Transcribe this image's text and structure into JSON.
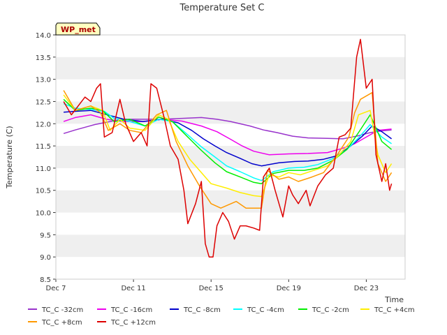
{
  "chart_data": {
    "type": "line",
    "title": "Temperature Set C",
    "xlabel": "Time",
    "ylabel": "Temperature (C)",
    "ylim": [
      8.5,
      14.0
    ],
    "xlim": [
      "Dec 7",
      "Dec 25"
    ],
    "yticks": [
      8.5,
      9.0,
      9.5,
      10.0,
      10.5,
      11.0,
      11.5,
      12.0,
      12.5,
      13.0,
      13.5,
      14.0
    ],
    "xticks": [
      "Dec 7",
      "Dec 11",
      "Dec 15",
      "Dec 19",
      "Dec 23"
    ],
    "xtick_days": [
      0,
      4,
      8,
      12,
      16
    ],
    "grid": "horizontal bands",
    "annotation": "WP_met",
    "legend_position": "bottom",
    "series": [
      {
        "name": "TC_C -32cm",
        "color": "#9933cc",
        "points": [
          [
            0.4,
            11.78
          ],
          [
            1,
            11.86
          ],
          [
            2,
            11.98
          ],
          [
            2.8,
            12.05
          ],
          [
            3.5,
            12.1
          ],
          [
            4.5,
            12.1
          ],
          [
            5.5,
            12.1
          ],
          [
            6.5,
            12.12
          ],
          [
            7.5,
            12.14
          ],
          [
            8.3,
            12.1
          ],
          [
            9,
            12.05
          ],
          [
            10,
            11.95
          ],
          [
            10.7,
            11.86
          ],
          [
            11.4,
            11.8
          ],
          [
            12.2,
            11.72
          ],
          [
            13,
            11.68
          ],
          [
            14,
            11.67
          ],
          [
            14.8,
            11.66
          ],
          [
            15.5,
            11.72
          ],
          [
            16.2,
            11.8
          ],
          [
            16.8,
            11.84
          ],
          [
            17.3,
            11.86
          ]
        ]
      },
      {
        "name": "TC_C -16cm",
        "color": "#ee00ee",
        "points": [
          [
            0.4,
            12.05
          ],
          [
            1,
            12.14
          ],
          [
            1.8,
            12.2
          ],
          [
            2.6,
            12.1
          ],
          [
            3.5,
            12.05
          ],
          [
            4.5,
            12.05
          ],
          [
            5.5,
            12.1
          ],
          [
            6.5,
            12.06
          ],
          [
            7.5,
            11.95
          ],
          [
            8.3,
            11.82
          ],
          [
            9,
            11.65
          ],
          [
            9.6,
            11.5
          ],
          [
            10.2,
            11.38
          ],
          [
            11,
            11.3
          ],
          [
            12,
            11.32
          ],
          [
            13,
            11.33
          ],
          [
            14,
            11.35
          ],
          [
            14.8,
            11.45
          ],
          [
            15.4,
            11.55
          ],
          [
            16,
            11.7
          ],
          [
            16.6,
            11.85
          ],
          [
            17.3,
            11.88
          ]
        ]
      },
      {
        "name": "TC_C -8cm",
        "color": "#0000cc",
        "points": [
          [
            0.4,
            12.26
          ],
          [
            1,
            12.28
          ],
          [
            1.8,
            12.3
          ],
          [
            2.5,
            12.22
          ],
          [
            3.5,
            12.1
          ],
          [
            4.5,
            12.05
          ],
          [
            5.5,
            12.1
          ],
          [
            6.3,
            12.02
          ],
          [
            7,
            11.85
          ],
          [
            7.6,
            11.66
          ],
          [
            8.2,
            11.5
          ],
          [
            8.8,
            11.35
          ],
          [
            9.5,
            11.22
          ],
          [
            10.1,
            11.1
          ],
          [
            10.6,
            11.05
          ],
          [
            11.5,
            11.12
          ],
          [
            12.3,
            11.15
          ],
          [
            13,
            11.16
          ],
          [
            13.8,
            11.2
          ],
          [
            14.5,
            11.28
          ],
          [
            15.2,
            11.5
          ],
          [
            15.8,
            11.72
          ],
          [
            16.3,
            11.95
          ],
          [
            16.8,
            11.82
          ],
          [
            17.3,
            11.66
          ]
        ]
      },
      {
        "name": "TC_C -4cm",
        "color": "#00ffff",
        "points": [
          [
            0.4,
            12.45
          ],
          [
            1,
            12.35
          ],
          [
            1.8,
            12.32
          ],
          [
            2.5,
            12.28
          ],
          [
            3,
            12.12
          ],
          [
            3.8,
            12.05
          ],
          [
            4.6,
            11.95
          ],
          [
            5.3,
            12.1
          ],
          [
            6,
            12.05
          ],
          [
            6.8,
            11.75
          ],
          [
            7.5,
            11.48
          ],
          [
            8.2,
            11.25
          ],
          [
            8.8,
            11.05
          ],
          [
            9.5,
            10.92
          ],
          [
            10.2,
            10.78
          ],
          [
            10.6,
            10.72
          ],
          [
            11.2,
            10.92
          ],
          [
            12,
            11
          ],
          [
            12.8,
            11.02
          ],
          [
            13.5,
            11.08
          ],
          [
            14.3,
            11.22
          ],
          [
            15,
            11.42
          ],
          [
            15.6,
            11.68
          ],
          [
            16.2,
            11.98
          ],
          [
            16.8,
            11.7
          ],
          [
            17.3,
            11.55
          ]
        ]
      },
      {
        "name": "TC_C -2cm",
        "color": "#00ee00",
        "points": [
          [
            0.4,
            12.55
          ],
          [
            1,
            12.3
          ],
          [
            1.8,
            12.35
          ],
          [
            2.4,
            12.3
          ],
          [
            3,
            12.05
          ],
          [
            3.8,
            12.1
          ],
          [
            4.6,
            11.95
          ],
          [
            5.3,
            12.15
          ],
          [
            6,
            12.05
          ],
          [
            6.8,
            11.7
          ],
          [
            7.5,
            11.4
          ],
          [
            8.2,
            11.12
          ],
          [
            8.8,
            10.92
          ],
          [
            9.5,
            10.8
          ],
          [
            10.2,
            10.68
          ],
          [
            10.6,
            10.65
          ],
          [
            11.2,
            10.88
          ],
          [
            12,
            10.95
          ],
          [
            12.8,
            10.95
          ],
          [
            13.5,
            11
          ],
          [
            14.3,
            11.18
          ],
          [
            15,
            11.42
          ],
          [
            15.6,
            11.8
          ],
          [
            16.2,
            12.2
          ],
          [
            16.8,
            11.6
          ],
          [
            17.3,
            11.42
          ]
        ]
      },
      {
        "name": "TC_C +4cm",
        "color": "#ffee00",
        "points": [
          [
            0.4,
            12.65
          ],
          [
            1,
            12.3
          ],
          [
            1.8,
            12.4
          ],
          [
            2.4,
            12.3
          ],
          [
            2.8,
            11.85
          ],
          [
            3.3,
            12.1
          ],
          [
            3.8,
            11.9
          ],
          [
            4.6,
            11.85
          ],
          [
            5.3,
            12.2
          ],
          [
            5.8,
            12.1
          ],
          [
            6.3,
            11.6
          ],
          [
            6.9,
            11.2
          ],
          [
            7.5,
            10.9
          ],
          [
            8,
            10.65
          ],
          [
            8.8,
            10.55
          ],
          [
            9.5,
            10.45
          ],
          [
            10.2,
            10.38
          ],
          [
            10.6,
            10.36
          ],
          [
            11,
            10.85
          ],
          [
            11.5,
            10.8
          ],
          [
            12,
            10.9
          ],
          [
            12.6,
            10.85
          ],
          [
            13.3,
            10.95
          ],
          [
            14,
            11.05
          ],
          [
            14.6,
            11.3
          ],
          [
            15.2,
            11.6
          ],
          [
            15.6,
            12.2
          ],
          [
            16.2,
            12.3
          ],
          [
            16.6,
            11.3
          ],
          [
            17,
            10.9
          ],
          [
            17.3,
            11.1
          ]
        ]
      },
      {
        "name": "TC_C +8cm",
        "color": "#ff9900",
        "points": [
          [
            0.4,
            12.75
          ],
          [
            1,
            12.3
          ],
          [
            1.8,
            12.4
          ],
          [
            2.3,
            12.25
          ],
          [
            2.7,
            11.85
          ],
          [
            3.3,
            12.0
          ],
          [
            3.8,
            11.85
          ],
          [
            4.4,
            11.8
          ],
          [
            5.2,
            12.2
          ],
          [
            5.7,
            12.3
          ],
          [
            6.2,
            11.6
          ],
          [
            6.8,
            11.05
          ],
          [
            7.4,
            10.6
          ],
          [
            8,
            10.2
          ],
          [
            8.5,
            10.1
          ],
          [
            9.3,
            10.25
          ],
          [
            9.8,
            10.1
          ],
          [
            10.6,
            10.1
          ],
          [
            10.9,
            10.95
          ],
          [
            11.5,
            10.75
          ],
          [
            12,
            10.8
          ],
          [
            12.5,
            10.7
          ],
          [
            13.2,
            10.8
          ],
          [
            13.8,
            10.9
          ],
          [
            14.5,
            11.3
          ],
          [
            15.1,
            11.7
          ],
          [
            15.4,
            12.25
          ],
          [
            15.7,
            12.55
          ],
          [
            16.3,
            12.7
          ],
          [
            16.6,
            11.1
          ],
          [
            17,
            10.7
          ],
          [
            17.3,
            10.9
          ]
        ]
      },
      {
        "name": "TC_C +12cm",
        "color": "#dd0000",
        "points": [
          [
            0.4,
            12.5
          ],
          [
            0.8,
            12.2
          ],
          [
            1.5,
            12.6
          ],
          [
            1.8,
            12.5
          ],
          [
            2.1,
            12.8
          ],
          [
            2.3,
            12.9
          ],
          [
            2.5,
            11.7
          ],
          [
            2.9,
            11.8
          ],
          [
            3.3,
            12.55
          ],
          [
            3.6,
            12.0
          ],
          [
            4.0,
            11.6
          ],
          [
            4.4,
            11.8
          ],
          [
            4.7,
            11.5
          ],
          [
            4.9,
            12.9
          ],
          [
            5.2,
            12.8
          ],
          [
            5.6,
            12.1
          ],
          [
            5.9,
            11.5
          ],
          [
            6.3,
            11.2
          ],
          [
            6.6,
            10.5
          ],
          [
            6.8,
            9.75
          ],
          [
            7.2,
            10.2
          ],
          [
            7.5,
            10.7
          ],
          [
            7.7,
            9.3
          ],
          [
            7.9,
            9.0
          ],
          [
            8.1,
            9.0
          ],
          [
            8.3,
            9.7
          ],
          [
            8.6,
            10.0
          ],
          [
            8.9,
            9.8
          ],
          [
            9.2,
            9.4
          ],
          [
            9.5,
            9.7
          ],
          [
            9.8,
            9.7
          ],
          [
            10.2,
            9.65
          ],
          [
            10.5,
            9.6
          ],
          [
            10.7,
            10.8
          ],
          [
            11.0,
            11.0
          ],
          [
            11.3,
            10.5
          ],
          [
            11.7,
            9.9
          ],
          [
            12.0,
            10.6
          ],
          [
            12.2,
            10.4
          ],
          [
            12.5,
            10.2
          ],
          [
            12.9,
            10.5
          ],
          [
            13.1,
            10.15
          ],
          [
            13.5,
            10.6
          ],
          [
            13.9,
            10.85
          ],
          [
            14.3,
            11.0
          ],
          [
            14.6,
            11.7
          ],
          [
            14.9,
            11.75
          ],
          [
            15.2,
            11.9
          ],
          [
            15.5,
            13.5
          ],
          [
            15.7,
            13.9
          ],
          [
            16.0,
            12.8
          ],
          [
            16.3,
            13.0
          ],
          [
            16.5,
            11.3
          ],
          [
            16.8,
            10.7
          ],
          [
            17.0,
            11.1
          ],
          [
            17.2,
            10.5
          ],
          [
            17.3,
            10.65
          ]
        ]
      }
    ]
  }
}
